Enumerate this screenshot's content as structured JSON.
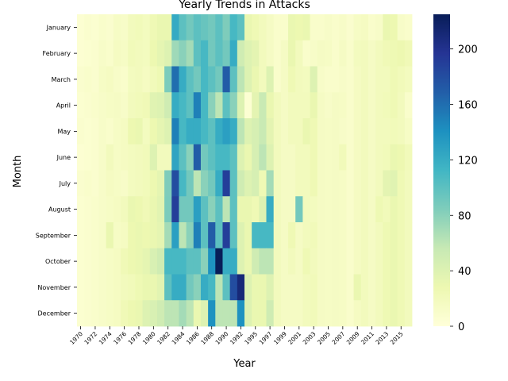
{
  "chart_data": {
    "type": "heatmap",
    "title": "Yearly Trends in Attacks",
    "xlabel": "Year",
    "ylabel": "Month",
    "x": [
      1970,
      1971,
      1972,
      1973,
      1974,
      1975,
      1976,
      1977,
      1978,
      1979,
      1980,
      1981,
      1982,
      1983,
      1984,
      1985,
      1986,
      1987,
      1988,
      1989,
      1990,
      1991,
      1992,
      1994,
      1995,
      1996,
      1997,
      1998,
      1999,
      2000,
      2001,
      2002,
      2003,
      2004,
      2005,
      2006,
      2007,
      2008,
      2009,
      2010,
      2011,
      2012,
      2013,
      2014,
      2015,
      2016
    ],
    "x_tick_labels": [
      "1970",
      "1972",
      "1974",
      "1976",
      "1978",
      "1980",
      "1982",
      "1984",
      "1986",
      "1988",
      "1990",
      "1992",
      "1995",
      "1997",
      "1999",
      "2001",
      "2003",
      "2005",
      "2007",
      "2009",
      "2011",
      "2013",
      "2015"
    ],
    "y": [
      "January",
      "February",
      "March",
      "April",
      "May",
      "June",
      "July",
      "August",
      "September",
      "October",
      "November",
      "December"
    ],
    "z": [
      [
        5,
        8,
        6,
        10,
        8,
        14,
        12,
        20,
        22,
        18,
        25,
        30,
        30,
        122,
        100,
        90,
        100,
        95,
        90,
        100,
        85,
        110,
        100,
        30,
        25,
        20,
        15,
        10,
        10,
        30,
        28,
        30,
        10,
        10,
        12,
        10,
        12,
        8,
        14,
        16,
        10,
        12,
        30,
        28,
        12,
        10
      ],
      [
        5,
        6,
        8,
        12,
        10,
        16,
        14,
        22,
        20,
        18,
        28,
        34,
        40,
        72,
        80,
        70,
        100,
        110,
        90,
        100,
        90,
        120,
        50,
        40,
        35,
        20,
        15,
        10,
        15,
        30,
        20,
        10,
        12,
        15,
        14,
        10,
        15,
        10,
        18,
        20,
        15,
        20,
        24,
        26,
        28,
        24
      ],
      [
        8,
        10,
        8,
        14,
        16,
        12,
        10,
        18,
        20,
        16,
        22,
        26,
        86,
        160,
        120,
        100,
        90,
        110,
        100,
        90,
        170,
        100,
        60,
        40,
        30,
        20,
        40,
        10,
        15,
        25,
        20,
        18,
        40,
        12,
        10,
        10,
        12,
        10,
        16,
        20,
        15,
        20,
        20,
        25,
        22,
        18
      ],
      [
        6,
        8,
        10,
        12,
        14,
        15,
        12,
        20,
        22,
        24,
        38,
        40,
        50,
        120,
        110,
        100,
        150,
        110,
        80,
        60,
        100,
        80,
        40,
        5,
        35,
        55,
        30,
        20,
        15,
        20,
        20,
        20,
        30,
        15,
        12,
        15,
        14,
        10,
        16,
        20,
        15,
        20,
        22,
        25,
        20,
        10
      ],
      [
        8,
        6,
        8,
        12,
        10,
        14,
        16,
        28,
        30,
        18,
        28,
        34,
        40,
        150,
        110,
        120,
        120,
        110,
        100,
        120,
        130,
        120,
        60,
        40,
        45,
        55,
        35,
        20,
        15,
        20,
        20,
        30,
        25,
        15,
        14,
        15,
        12,
        10,
        16,
        20,
        15,
        20,
        20,
        22,
        20,
        14
      ],
      [
        5,
        6,
        8,
        12,
        20,
        14,
        16,
        18,
        20,
        22,
        40,
        20,
        20,
        126,
        100,
        80,
        170,
        90,
        100,
        110,
        110,
        100,
        40,
        30,
        45,
        60,
        40,
        20,
        15,
        15,
        20,
        20,
        25,
        15,
        14,
        15,
        22,
        10,
        16,
        20,
        15,
        20,
        22,
        30,
        28,
        22
      ],
      [
        8,
        10,
        8,
        12,
        16,
        14,
        12,
        18,
        20,
        22,
        28,
        34,
        85,
        180,
        110,
        90,
        60,
        80,
        90,
        120,
        190,
        100,
        50,
        40,
        45,
        25,
        70,
        20,
        15,
        15,
        20,
        20,
        25,
        15,
        14,
        15,
        14,
        10,
        16,
        20,
        15,
        20,
        35,
        38,
        25,
        20
      ],
      [
        6,
        8,
        10,
        12,
        14,
        16,
        20,
        30,
        28,
        24,
        30,
        36,
        86,
        190,
        90,
        90,
        130,
        100,
        80,
        100,
        60,
        100,
        30,
        30,
        25,
        40,
        120,
        20,
        15,
        15,
        90,
        20,
        18,
        15,
        14,
        15,
        14,
        10,
        16,
        20,
        15,
        26,
        22,
        30,
        25,
        20
      ],
      [
        6,
        8,
        10,
        12,
        30,
        14,
        16,
        28,
        30,
        28,
        30,
        34,
        70,
        130,
        60,
        80,
        150,
        100,
        170,
        100,
        190,
        100,
        40,
        30,
        110,
        110,
        110,
        20,
        15,
        25,
        15,
        20,
        22,
        15,
        14,
        15,
        14,
        10,
        16,
        20,
        15,
        20,
        26,
        30,
        25,
        20
      ],
      [
        6,
        8,
        10,
        12,
        14,
        16,
        24,
        28,
        30,
        34,
        44,
        50,
        110,
        110,
        110,
        100,
        100,
        80,
        140,
        225,
        120,
        120,
        40,
        30,
        50,
        60,
        60,
        20,
        15,
        20,
        15,
        25,
        20,
        15,
        14,
        15,
        14,
        10,
        16,
        20,
        15,
        20,
        26,
        30,
        25,
        20
      ],
      [
        6,
        8,
        10,
        12,
        14,
        16,
        20,
        22,
        26,
        30,
        30,
        36,
        100,
        120,
        120,
        90,
        80,
        120,
        110,
        60,
        100,
        180,
        210,
        40,
        30,
        30,
        40,
        20,
        15,
        15,
        15,
        20,
        22,
        15,
        14,
        15,
        14,
        10,
        30,
        20,
        15,
        20,
        26,
        30,
        25,
        20
      ],
      [
        6,
        8,
        10,
        12,
        14,
        16,
        24,
        28,
        30,
        40,
        44,
        50,
        60,
        60,
        70,
        60,
        30,
        40,
        140,
        60,
        60,
        60,
        140,
        40,
        30,
        30,
        50,
        20,
        15,
        15,
        15,
        20,
        22,
        15,
        14,
        15,
        14,
        10,
        16,
        20,
        15,
        20,
        26,
        30,
        25,
        20
      ]
    ],
    "colorbar": {
      "min": 0,
      "max": 225,
      "ticks": [
        0,
        40,
        80,
        120,
        160,
        200
      ],
      "colormap": "YlGnBu"
    }
  }
}
